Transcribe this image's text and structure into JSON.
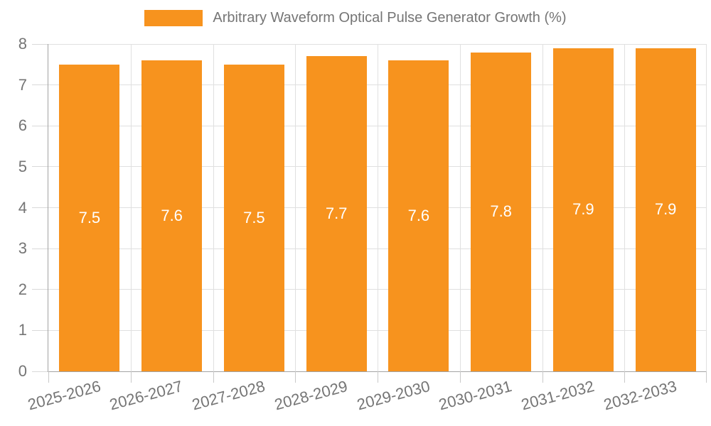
{
  "legend": {
    "label": "Arbitrary Waveform Optical Pulse Generator Growth (%)"
  },
  "chart_data": {
    "type": "bar",
    "title": "",
    "categories": [
      "2025-2026",
      "2026-2027",
      "2027-2028",
      "2028-2029",
      "2029-2030",
      "2030-2031",
      "2031-2032",
      "2032-2033"
    ],
    "values": [
      7.5,
      7.6,
      7.5,
      7.7,
      7.6,
      7.8,
      7.9,
      7.9
    ],
    "series_name": "Arbitrary Waveform Optical Pulse Generator Growth (%)",
    "xlabel": "",
    "ylabel": "",
    "ylim": [
      0,
      8
    ],
    "ytick_step": 1,
    "yticks": [
      0,
      1,
      2,
      3,
      4,
      5,
      6,
      7,
      8
    ],
    "grid": true,
    "legend_position": "top",
    "bar_color": "#f7931e",
    "value_label_color": "#ffffff",
    "axis_text_color": "#757575",
    "grid_color": "#e0e0e0",
    "axis_line_color": "#a3a3a3"
  }
}
